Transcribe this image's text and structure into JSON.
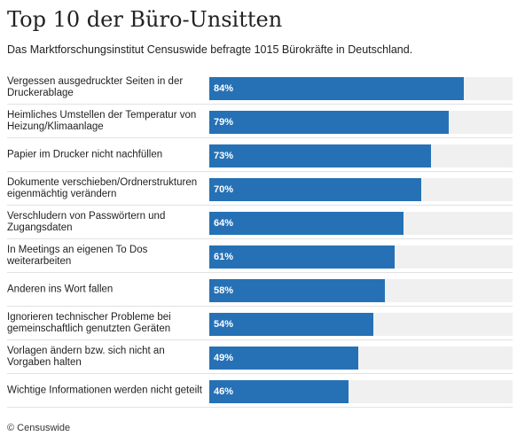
{
  "header": {
    "title": "Top 10 der Büro-Unsitten",
    "subtitle": "Das Marktforschungsinstitut Censuswide befragte 1015 Bürokräfte in Deutschland."
  },
  "footer": {
    "source": "© Censuswide"
  },
  "colors": {
    "bar": "#2671b5",
    "track": "#f0f0f0",
    "divider": "#e2e2e2"
  },
  "chart_data": {
    "type": "bar",
    "orientation": "horizontal",
    "title": "Top 10 der Büro-Unsitten",
    "subtitle": "Das Marktforschungsinstitut Censuswide befragte 1015 Bürokräfte in Deutschland.",
    "xlabel": "",
    "ylabel": "",
    "xlim": [
      0,
      100
    ],
    "unit": "%",
    "grid": false,
    "legend": "none",
    "categories": [
      "Vergessen ausgedruckter Seiten in der Druckerablage",
      "Heimliches Umstellen der Temperatur von Heizung/Klimaanlage",
      "Papier im Drucker nicht nachfüllen",
      "Dokumente verschieben/Ordnerstrukturen eigenmächtig verändern",
      "Verschludern von Passwörtern und Zugangsdaten",
      "In Meetings an eigenen To Dos weiterarbeiten",
      "Anderen ins Wort fallen",
      "Ignorieren technischer Probleme bei gemeinschaftlich genutzten Geräten",
      "Vorlagen ändern bzw. sich nicht an Vorgaben halten",
      "Wichtige Informationen werden nicht geteilt"
    ],
    "values": [
      84,
      79,
      73,
      70,
      64,
      61,
      58,
      54,
      49,
      46
    ],
    "value_labels": [
      "84%",
      "79%",
      "73%",
      "70%",
      "64%",
      "61%",
      "58%",
      "54%",
      "49%",
      "46%"
    ]
  }
}
